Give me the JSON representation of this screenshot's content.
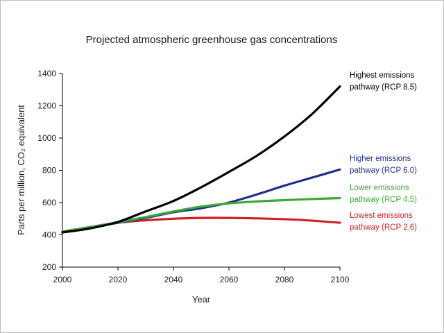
{
  "chart_data": {
    "type": "line",
    "title": "Projected atmospheric greenhouse gas concentrations",
    "xlabel": "Year",
    "ylabel": "Parts per million, CO₂ equivalent",
    "xlim": [
      2000,
      2100
    ],
    "ylim": [
      200,
      1400
    ],
    "xticks": [
      2000,
      2020,
      2040,
      2060,
      2080,
      2100
    ],
    "yticks": [
      200,
      400,
      600,
      800,
      1000,
      1200,
      1400
    ],
    "grid": false,
    "legend_placement": "right",
    "x": [
      2000,
      2010,
      2020,
      2030,
      2040,
      2050,
      2060,
      2070,
      2080,
      2090,
      2100
    ],
    "series": [
      {
        "name_line1": "Highest emissions",
        "name_line2": "pathway (RCP 8.5)",
        "color": "#000000",
        "values": [
          415,
          440,
          480,
          545,
          610,
          695,
          790,
          890,
          1010,
          1150,
          1320
        ]
      },
      {
        "name_line1": "Higher emissions",
        "name_line2": "pathway (RCP 6.0)",
        "color": "#1f2f8c",
        "values": [
          418,
          445,
          475,
          505,
          540,
          565,
          600,
          650,
          705,
          755,
          805
        ]
      },
      {
        "name_line1": "Lower emissions",
        "name_line2": "pathway (RCP 4.5)",
        "color": "#3aa935",
        "values": [
          420,
          448,
          478,
          510,
          545,
          575,
          595,
          607,
          615,
          622,
          628
        ]
      },
      {
        "name_line1": "Lowest emissions",
        "name_line2": "pathway (RCP 2.6)",
        "color": "#d11f26",
        "values": [
          420,
          448,
          475,
          490,
          500,
          505,
          505,
          502,
          497,
          488,
          475
        ]
      }
    ]
  }
}
